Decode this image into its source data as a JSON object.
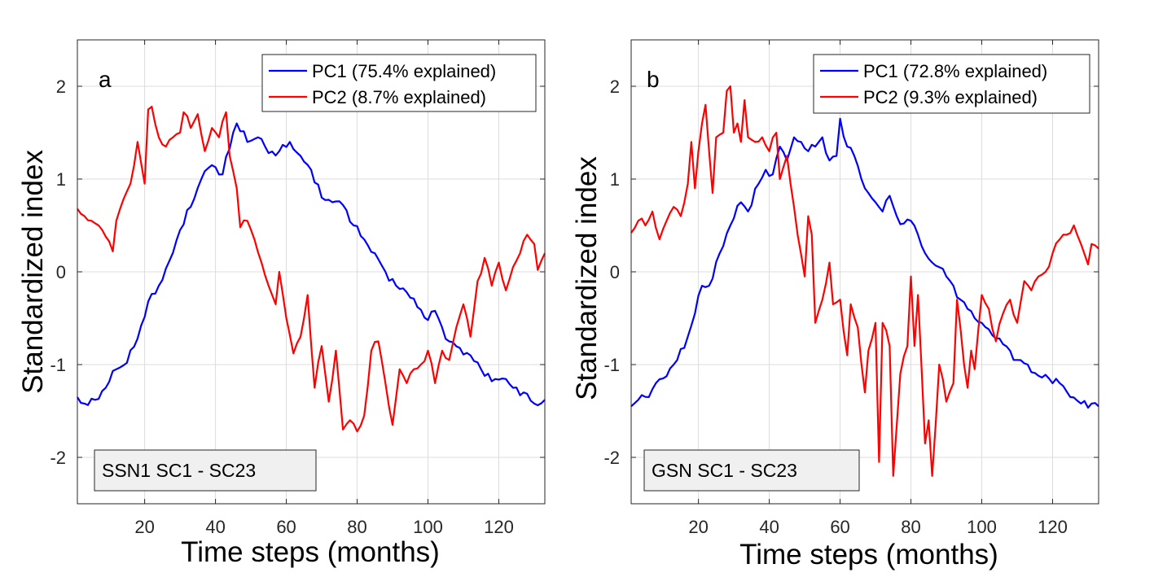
{
  "chart_data": [
    {
      "type": "line",
      "panel_letter": "a",
      "xlabel": "Time steps (months)",
      "ylabel": "Standardized index",
      "xlim": [
        1,
        133
      ],
      "ylim": [
        -2.5,
        2.5
      ],
      "xticks": [
        20,
        40,
        60,
        80,
        100,
        120
      ],
      "yticks": [
        -2,
        -1,
        0,
        1,
        2
      ],
      "grid": true,
      "legend_position": "top-right",
      "annotation": "SSN1 SC1 - SC23",
      "series": [
        {
          "name": "PC1 (75.4% explained)",
          "color": "#0000ff",
          "anchors": [
            [
              1,
              -1.35
            ],
            [
              3,
              -1.42
            ],
            [
              6,
              -1.38
            ],
            [
              9,
              -1.25
            ],
            [
              12,
              -1.05
            ],
            [
              15,
              -0.98
            ],
            [
              18,
              -0.72
            ],
            [
              21,
              -0.32
            ],
            [
              24,
              -0.15
            ],
            [
              27,
              0.12
            ],
            [
              30,
              0.45
            ],
            [
              33,
              0.7
            ],
            [
              36,
              1.0
            ],
            [
              39,
              1.15
            ],
            [
              42,
              1.05
            ],
            [
              45,
              1.5
            ],
            [
              46,
              1.6
            ],
            [
              49,
              1.4
            ],
            [
              52,
              1.45
            ],
            [
              55,
              1.28
            ],
            [
              58,
              1.3
            ],
            [
              61,
              1.4
            ],
            [
              64,
              1.25
            ],
            [
              67,
              1.1
            ],
            [
              70,
              0.8
            ],
            [
              73,
              0.75
            ],
            [
              76,
              0.72
            ],
            [
              79,
              0.5
            ],
            [
              82,
              0.35
            ],
            [
              85,
              0.2
            ],
            [
              88,
              0.0
            ],
            [
              91,
              -0.15
            ],
            [
              94,
              -0.22
            ],
            [
              97,
              -0.38
            ],
            [
              100,
              -0.52
            ],
            [
              102,
              -0.42
            ],
            [
              104,
              -0.6
            ],
            [
              106,
              -0.75
            ],
            [
              109,
              -0.82
            ],
            [
              112,
              -0.9
            ],
            [
              115,
              -1.05
            ],
            [
              118,
              -1.18
            ],
            [
              121,
              -1.15
            ],
            [
              124,
              -1.25
            ],
            [
              127,
              -1.3
            ],
            [
              130,
              -1.42
            ],
            [
              133,
              -1.38
            ]
          ]
        },
        {
          "name": "PC2 (8.7% explained)",
          "color": "#ff0000",
          "anchors": [
            [
              1,
              0.68
            ],
            [
              3,
              0.6
            ],
            [
              5,
              0.55
            ],
            [
              7,
              0.5
            ],
            [
              9,
              0.38
            ],
            [
              11,
              0.22
            ],
            [
              12,
              0.55
            ],
            [
              14,
              0.78
            ],
            [
              16,
              0.95
            ],
            [
              18,
              1.4
            ],
            [
              20,
              0.95
            ],
            [
              21,
              1.75
            ],
            [
              22,
              1.78
            ],
            [
              24,
              1.45
            ],
            [
              26,
              1.35
            ],
            [
              28,
              1.45
            ],
            [
              30,
              1.5
            ],
            [
              31,
              1.72
            ],
            [
              33,
              1.55
            ],
            [
              35,
              1.7
            ],
            [
              37,
              1.3
            ],
            [
              39,
              1.55
            ],
            [
              41,
              1.45
            ],
            [
              43,
              1.72
            ],
            [
              44,
              1.25
            ],
            [
              46,
              0.9
            ],
            [
              47,
              0.48
            ],
            [
              49,
              0.55
            ],
            [
              51,
              0.35
            ],
            [
              53,
              0.1
            ],
            [
              55,
              -0.15
            ],
            [
              57,
              -0.35
            ],
            [
              58,
              0.0
            ],
            [
              60,
              -0.5
            ],
            [
              62,
              -0.88
            ],
            [
              64,
              -0.7
            ],
            [
              66,
              -0.25
            ],
            [
              68,
              -1.25
            ],
            [
              70,
              -0.8
            ],
            [
              72,
              -1.4
            ],
            [
              74,
              -0.85
            ],
            [
              76,
              -1.7
            ],
            [
              78,
              -1.6
            ],
            [
              80,
              -1.72
            ],
            [
              82,
              -1.55
            ],
            [
              84,
              -0.85
            ],
            [
              86,
              -0.75
            ],
            [
              88,
              -1.2
            ],
            [
              90,
              -1.65
            ],
            [
              92,
              -1.05
            ],
            [
              94,
              -1.2
            ],
            [
              96,
              -1.05
            ],
            [
              98,
              -1.0
            ],
            [
              100,
              -0.85
            ],
            [
              102,
              -1.2
            ],
            [
              104,
              -0.85
            ],
            [
              106,
              -0.95
            ],
            [
              108,
              -0.6
            ],
            [
              110,
              -0.35
            ],
            [
              112,
              -0.7
            ],
            [
              114,
              -0.1
            ],
            [
              116,
              0.15
            ],
            [
              118,
              -0.15
            ],
            [
              120,
              0.1
            ],
            [
              122,
              -0.2
            ],
            [
              124,
              0.05
            ],
            [
              126,
              0.2
            ],
            [
              128,
              0.4
            ],
            [
              130,
              0.3
            ],
            [
              131,
              0.02
            ],
            [
              133,
              0.2
            ]
          ]
        }
      ]
    },
    {
      "type": "line",
      "panel_letter": "b",
      "xlabel": "Time steps (months)",
      "ylabel": "Standardized index",
      "xlim": [
        1,
        133
      ],
      "ylim": [
        -2.5,
        2.5
      ],
      "xticks": [
        20,
        40,
        60,
        80,
        100,
        120
      ],
      "yticks": [
        -2,
        -1,
        0,
        1,
        2
      ],
      "grid": true,
      "legend_position": "top-right",
      "annotation": "GSN SC1 - SC23",
      "series": [
        {
          "name": "PC1 (72.8% explained)",
          "color": "#0000ff",
          "anchors": [
            [
              1,
              -1.45
            ],
            [
              3,
              -1.38
            ],
            [
              6,
              -1.35
            ],
            [
              8,
              -1.2
            ],
            [
              10,
              -1.15
            ],
            [
              13,
              -1.0
            ],
            [
              16,
              -0.82
            ],
            [
              19,
              -0.45
            ],
            [
              21,
              -0.15
            ],
            [
              23,
              -0.15
            ],
            [
              26,
              0.2
            ],
            [
              29,
              0.5
            ],
            [
              32,
              0.75
            ],
            [
              34,
              0.65
            ],
            [
              37,
              0.95
            ],
            [
              39,
              1.1
            ],
            [
              41,
              1.05
            ],
            [
              43,
              1.35
            ],
            [
              45,
              1.2
            ],
            [
              47,
              1.45
            ],
            [
              49,
              1.4
            ],
            [
              51,
              1.3
            ],
            [
              53,
              1.35
            ],
            [
              55,
              1.45
            ],
            [
              57,
              1.2
            ],
            [
              59,
              1.25
            ],
            [
              60,
              1.65
            ],
            [
              62,
              1.35
            ],
            [
              64,
              1.25
            ],
            [
              66,
              1.0
            ],
            [
              68,
              0.85
            ],
            [
              70,
              0.75
            ],
            [
              72,
              0.65
            ],
            [
              74,
              0.82
            ],
            [
              76,
              0.6
            ],
            [
              78,
              0.52
            ],
            [
              80,
              0.55
            ],
            [
              82,
              0.4
            ],
            [
              84,
              0.2
            ],
            [
              86,
              0.1
            ],
            [
              88,
              0.05
            ],
            [
              90,
              -0.05
            ],
            [
              92,
              -0.15
            ],
            [
              94,
              -0.3
            ],
            [
              96,
              -0.4
            ],
            [
              98,
              -0.5
            ],
            [
              100,
              -0.55
            ],
            [
              102,
              -0.62
            ],
            [
              104,
              -0.72
            ],
            [
              106,
              -0.78
            ],
            [
              108,
              -0.85
            ],
            [
              110,
              -0.95
            ],
            [
              113,
              -1.0
            ],
            [
              116,
              -1.12
            ],
            [
              119,
              -1.15
            ],
            [
              122,
              -1.2
            ],
            [
              125,
              -1.35
            ],
            [
              128,
              -1.42
            ],
            [
              131,
              -1.42
            ],
            [
              133,
              -1.45
            ]
          ]
        },
        {
          "name": "PC2 (9.3% explained)",
          "color": "#ff0000",
          "anchors": [
            [
              1,
              0.42
            ],
            [
              3,
              0.55
            ],
            [
              5,
              0.5
            ],
            [
              7,
              0.65
            ],
            [
              9,
              0.35
            ],
            [
              11,
              0.55
            ],
            [
              13,
              0.7
            ],
            [
              15,
              0.6
            ],
            [
              17,
              0.95
            ],
            [
              18,
              1.4
            ],
            [
              19,
              0.9
            ],
            [
              21,
              1.6
            ],
            [
              22,
              1.8
            ],
            [
              23,
              1.3
            ],
            [
              24,
              0.85
            ],
            [
              25,
              1.45
            ],
            [
              27,
              1.5
            ],
            [
              28,
              1.95
            ],
            [
              29,
              2.0
            ],
            [
              30,
              1.5
            ],
            [
              31,
              1.6
            ],
            [
              32,
              1.4
            ],
            [
              33,
              1.85
            ],
            [
              34,
              1.45
            ],
            [
              36,
              1.4
            ],
            [
              38,
              1.45
            ],
            [
              40,
              1.3
            ],
            [
              42,
              1.5
            ],
            [
              43,
              1.0
            ],
            [
              45,
              1.25
            ],
            [
              46,
              0.95
            ],
            [
              48,
              0.4
            ],
            [
              50,
              -0.05
            ],
            [
              51,
              0.6
            ],
            [
              52,
              0.4
            ],
            [
              53,
              -0.55
            ],
            [
              55,
              -0.3
            ],
            [
              57,
              0.1
            ],
            [
              58,
              -0.35
            ],
            [
              60,
              -0.3
            ],
            [
              62,
              -0.9
            ],
            [
              63,
              -0.35
            ],
            [
              65,
              -0.6
            ],
            [
              67,
              -1.3
            ],
            [
              68,
              -0.85
            ],
            [
              70,
              -0.55
            ],
            [
              71,
              -2.05
            ],
            [
              72,
              -0.55
            ],
            [
              74,
              -0.8
            ],
            [
              75,
              -2.2
            ],
            [
              77,
              -1.1
            ],
            [
              79,
              -0.8
            ],
            [
              80,
              -0.05
            ],
            [
              81,
              -0.8
            ],
            [
              82,
              -0.25
            ],
            [
              84,
              -1.85
            ],
            [
              85,
              -1.6
            ],
            [
              86,
              -2.2
            ],
            [
              88,
              -1.0
            ],
            [
              90,
              -1.4
            ],
            [
              92,
              -1.2
            ],
            [
              93,
              -0.3
            ],
            [
              95,
              -1.0
            ],
            [
              96,
              -1.25
            ],
            [
              97,
              -0.85
            ],
            [
              98,
              -1.05
            ],
            [
              100,
              -0.25
            ],
            [
              102,
              -0.4
            ],
            [
              104,
              -0.75
            ],
            [
              106,
              -0.45
            ],
            [
              108,
              -0.3
            ],
            [
              110,
              -0.55
            ],
            [
              112,
              -0.1
            ],
            [
              114,
              -0.2
            ],
            [
              116,
              -0.05
            ],
            [
              118,
              0.0
            ],
            [
              120,
              0.2
            ],
            [
              122,
              0.35
            ],
            [
              124,
              0.4
            ],
            [
              126,
              0.5
            ],
            [
              128,
              0.3
            ],
            [
              130,
              0.08
            ],
            [
              131,
              0.3
            ],
            [
              133,
              0.25
            ]
          ]
        }
      ]
    }
  ]
}
